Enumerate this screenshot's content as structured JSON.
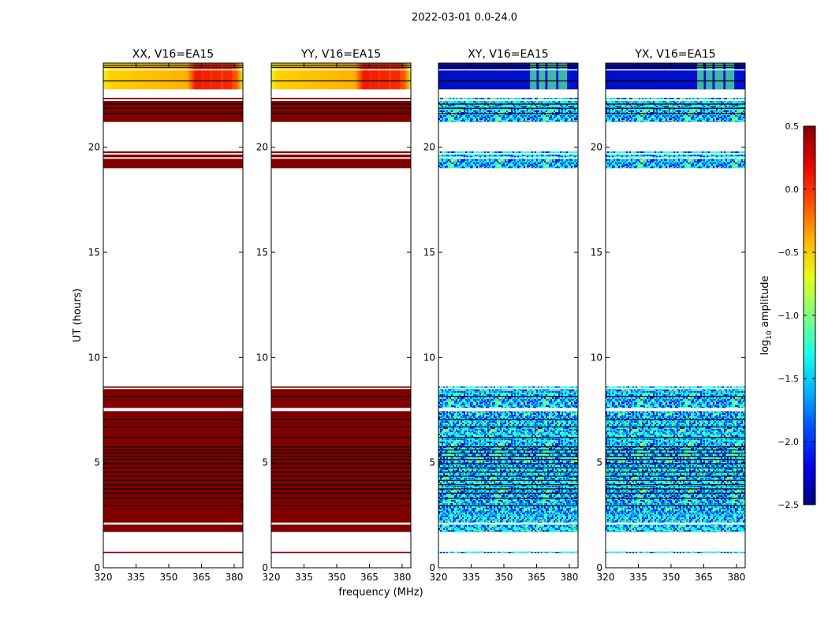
{
  "chart_data": {
    "type": "heatmap",
    "suptitle": "2022-03-01 0.0-24.0",
    "xlabel": "frequency (MHz)",
    "ylabel": "UT (hours)",
    "xlim": [
      320,
      384
    ],
    "ylim": [
      0,
      24
    ],
    "xticks": [
      "320",
      "335",
      "350",
      "365",
      "380"
    ],
    "xtick_values": [
      320,
      335,
      350,
      365,
      380
    ],
    "yticks": [
      "0",
      "5",
      "10",
      "15",
      "20"
    ],
    "ytick_values": [
      0,
      5,
      10,
      15,
      20
    ],
    "panels": [
      {
        "title": "XX, V16=EA15",
        "kind": "parallel"
      },
      {
        "title": "YY, V16=EA15",
        "kind": "parallel"
      },
      {
        "title": "XY, V16=EA15",
        "kind": "cross"
      },
      {
        "title": "YX, V16=EA15",
        "kind": "cross"
      }
    ],
    "data_bands_hours": [
      [
        0.7,
        0.76
      ],
      [
        1.7,
        2.05
      ],
      [
        2.15,
        7.45
      ],
      [
        7.6,
        8.5
      ],
      [
        8.56,
        8.62
      ],
      [
        19.0,
        19.45
      ],
      [
        19.52,
        19.65
      ],
      [
        19.72,
        19.8
      ],
      [
        21.2,
        22.2
      ],
      [
        22.28,
        22.35
      ],
      [
        22.75,
        23.65
      ],
      [
        23.7,
        24.0
      ]
    ],
    "flag_lines_hours": [
      2.95,
      3.3,
      3.55,
      3.75,
      3.95,
      4.15,
      4.35,
      4.55,
      4.75,
      4.95,
      5.15,
      5.3,
      5.45,
      5.6,
      5.75,
      6.2,
      6.7,
      7.05,
      8.15,
      21.6,
      21.85,
      22.05,
      23.15,
      23.8,
      23.9
    ],
    "bright_columns_mhz": [
      [
        362,
        365
      ],
      [
        366,
        369
      ],
      [
        370,
        374
      ],
      [
        375,
        379
      ]
    ],
    "colorbar": {
      "label": "log10 amplitude",
      "label_main": "log",
      "label_sub": "10",
      "label_rest": " amplitude",
      "range": [
        -2.5,
        0.5
      ],
      "ticks": [
        "0.5",
        "0.0",
        "−0.5",
        "−1.0",
        "−1.5",
        "−2.0",
        "−2.5"
      ],
      "tick_values": [
        0.5,
        0.0,
        -0.5,
        -1.0,
        -1.5,
        -2.0,
        -2.5
      ],
      "colormap": "jet"
    },
    "colors": {
      "saturated": "#800000",
      "low": "#00008f"
    }
  }
}
